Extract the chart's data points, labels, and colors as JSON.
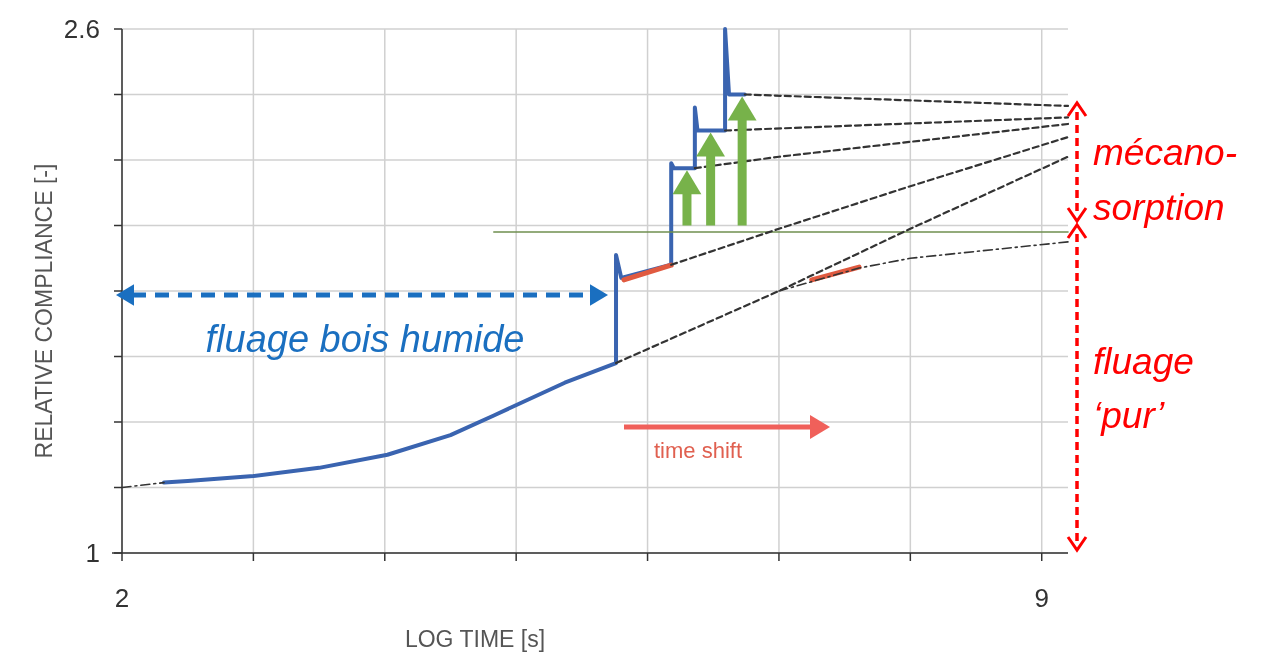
{
  "chart_data": {
    "type": "line",
    "xlabel": "LOG TIME [s]",
    "ylabel": "RELATIVE COMPLIANCE [-]",
    "xlim": [
      2,
      9.2
    ],
    "ylim": [
      1,
      2.6
    ],
    "xticks": [
      2,
      {
        "value": 3,
        "label": null
      },
      {
        "value": 4,
        "label": null
      },
      {
        "value": 5,
        "label": null
      },
      {
        "value": 6,
        "label": null
      },
      {
        "value": 7,
        "label": null
      },
      {
        "value": 8,
        "label": null
      },
      9
    ],
    "yticks": [
      1,
      {
        "value": 1.2,
        "label": null
      },
      {
        "value": 1.4,
        "label": null
      },
      {
        "value": 1.6,
        "label": null
      },
      {
        "value": 1.8,
        "label": null
      },
      {
        "value": 2,
        "label": null
      },
      {
        "value": 2.2,
        "label": null
      },
      {
        "value": 2.4,
        "label": null
      },
      2.6
    ],
    "grid": true,
    "marker": "none",
    "series": [
      {
        "color": "#3a64b0",
        "line_style": "solid",
        "x": [
          2.32,
          2.5,
          3.0,
          3.5,
          4.02,
          4.5,
          4.83,
          5.37,
          5.76,
          5.76,
          5.8,
          6.18,
          6.18,
          6.2,
          6.36,
          6.36,
          6.38,
          6.59,
          6.59,
          6.62,
          6.74
        ],
        "values": [
          1.215,
          1.22,
          1.235,
          1.26,
          1.3,
          1.36,
          1.42,
          1.52,
          1.58,
          1.91,
          1.84,
          1.88,
          2.19,
          2.175,
          2.175,
          2.36,
          2.29,
          2.29,
          2.6,
          2.4,
          2.4
        ]
      },
      {
        "color": "#e05a40",
        "line_style": "solid",
        "x": [
          5.82,
          6.18
        ],
        "values": [
          1.834,
          1.879
        ]
      },
      {
        "color": "#e05a40",
        "line_style": "solid",
        "x": [
          7.25,
          7.61
        ],
        "values": [
          1.834,
          1.873
        ]
      },
      {
        "color": "#6f8f4f",
        "line_style": "solid",
        "x": [
          4.83,
          9.2
        ],
        "values": [
          1.98,
          1.98
        ]
      },
      {
        "color": "#333333",
        "line_style": "dashed",
        "x": [
          5.76,
          7.0,
          8.0,
          9.2
        ],
        "values": [
          1.58,
          1.8,
          1.99,
          2.21
        ]
      },
      {
        "color": "#333333",
        "line_style": "dashed",
        "x": [
          6.18,
          7.0,
          8.0,
          9.2
        ],
        "values": [
          1.88,
          1.99,
          2.12,
          2.27
        ]
      },
      {
        "color": "#333333",
        "line_style": "dashed",
        "x": [
          6.36,
          7.0,
          9.2
        ],
        "values": [
          2.175,
          2.21,
          2.31
        ]
      },
      {
        "color": "#333333",
        "line_style": "dashed",
        "x": [
          6.59,
          9.2
        ],
        "values": [
          2.29,
          2.33
        ]
      },
      {
        "color": "#333333",
        "line_style": "dashed",
        "x": [
          6.74,
          9.2
        ],
        "values": [
          2.4,
          2.365
        ]
      },
      {
        "color": "#333333",
        "line_style": "dotted",
        "x": [
          7.0,
          7.61,
          8.0,
          9.2
        ],
        "values": [
          1.8,
          1.87,
          1.9,
          1.95
        ]
      },
      {
        "color": "#333333",
        "line_style": "dotted",
        "x": [
          2.0,
          2.32
        ],
        "values": [
          1.2,
          1.215
        ]
      }
    ],
    "annotations": [
      "fluage bois humide",
      "time shift",
      "mécano-sorption",
      "fluage ‘pur’"
    ]
  }
}
